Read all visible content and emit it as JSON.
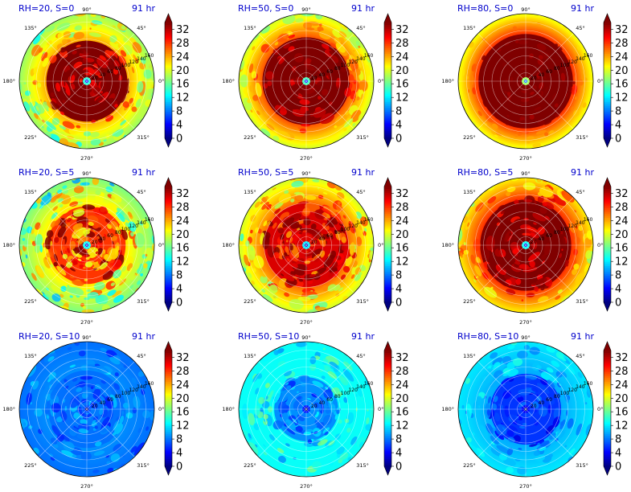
{
  "colorbar": {
    "ticks": [
      "0",
      "4",
      "8",
      "12",
      "16",
      "20",
      "24",
      "28",
      "32"
    ],
    "min": 0,
    "max": 34,
    "colormap": "jet",
    "extend": "both"
  },
  "angle_labels": [
    "0°",
    "45°",
    "90°",
    "135°",
    "180°",
    "225°",
    "270°",
    "315°"
  ],
  "radial_labels": [
    "20",
    "40",
    "60",
    "80",
    "100",
    "120",
    "140",
    "160"
  ],
  "panels": [
    {
      "title": "RH=20, S=0",
      "time": "91 hr",
      "eye_value": 14,
      "core_value": 34,
      "core_radius": 0.62,
      "outer_value": 24,
      "edge_value": 18,
      "noise": 6
    },
    {
      "title": "RH=50, S=0",
      "time": "91 hr",
      "eye_value": 15,
      "core_value": 34,
      "core_radius": 0.66,
      "outer_value": 27,
      "edge_value": 20,
      "noise": 4
    },
    {
      "title": "RH=80, S=0",
      "time": "91 hr",
      "eye_value": 18,
      "core_value": 34,
      "core_radius": 0.72,
      "outer_value": 28,
      "edge_value": 21,
      "noise": 1.5
    },
    {
      "title": "RH=20, S=5",
      "time": "91 hr",
      "eye_value": 13,
      "core_value": 28,
      "core_radius": 0.6,
      "outer_value": 22,
      "edge_value": 17,
      "noise": 8
    },
    {
      "title": "RH=50, S=5",
      "time": "91 hr",
      "eye_value": 12,
      "core_value": 31,
      "core_radius": 0.65,
      "outer_value": 26,
      "edge_value": 20,
      "noise": 7
    },
    {
      "title": "RH=80, S=5",
      "time": "91 hr",
      "eye_value": 13,
      "core_value": 34,
      "core_radius": 0.7,
      "outer_value": 28,
      "edge_value": 22,
      "noise": 5
    },
    {
      "title": "RH=20, S=10",
      "time": "91 hr",
      "eye_value": 7,
      "core_value": 8,
      "core_radius": 0.6,
      "outer_value": 9,
      "edge_value": 8,
      "noise": 3
    },
    {
      "title": "RH=50, S=10",
      "time": "91 hr",
      "eye_value": 5,
      "core_value": 9,
      "core_radius": 0.5,
      "outer_value": 13,
      "edge_value": 13,
      "noise": 4
    },
    {
      "title": "RH=80, S=10",
      "time": "91 hr",
      "eye_value": 4,
      "core_value": 6,
      "core_radius": 0.55,
      "outer_value": 10,
      "edge_value": 12,
      "noise": 3
    }
  ],
  "chart_data": {
    "type": "heatmap",
    "panels": [
      {
        "title": "RH=20, S=0",
        "annotation": "91 hr"
      },
      {
        "title": "RH=50, S=0",
        "annotation": "91 hr"
      },
      {
        "title": "RH=80, S=0",
        "annotation": "91 hr"
      },
      {
        "title": "RH=20, S=5",
        "annotation": "91 hr"
      },
      {
        "title": "RH=50, S=5",
        "annotation": "91 hr"
      },
      {
        "title": "RH=80, S=5",
        "annotation": "91 hr"
      },
      {
        "title": "RH=20, S=10",
        "annotation": "91 hr"
      },
      {
        "title": "RH=50, S=10",
        "annotation": "91 hr"
      },
      {
        "title": "RH=80, S=10",
        "annotation": "91 hr"
      }
    ],
    "angular_ticks": [
      "0°",
      "45°",
      "90°",
      "135°",
      "180°",
      "225°",
      "270°",
      "315°"
    ],
    "radial_ticks": [
      20,
      40,
      60,
      80,
      100,
      120,
      140,
      160
    ],
    "colorbar_ticks": [
      0,
      4,
      8,
      12,
      16,
      20,
      24,
      28,
      32
    ],
    "colorbar_range": [
      0,
      34
    ],
    "grid": true,
    "legend": "colorbar-right"
  }
}
